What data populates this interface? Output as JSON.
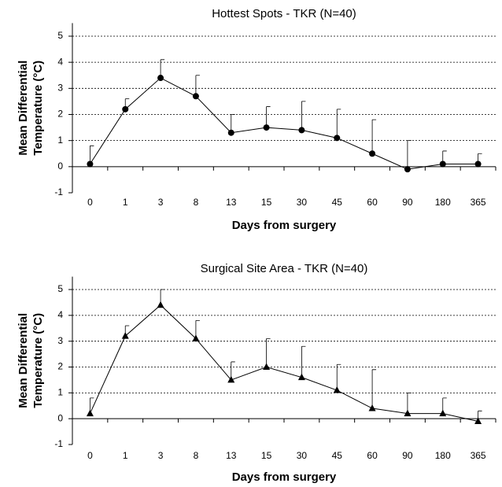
{
  "chart_data": [
    {
      "type": "line",
      "title": "Hottest Spots - TKR (N=40)",
      "xlabel": "Days from surgery",
      "ylabel": [
        "Mean Differential",
        "Temperature (°C)"
      ],
      "categories": [
        "0",
        "1",
        "3",
        "8",
        "13",
        "15",
        "30",
        "45",
        "60",
        "90",
        "180",
        "365"
      ],
      "values": [
        0.1,
        2.2,
        3.4,
        2.7,
        1.3,
        1.5,
        1.4,
        1.1,
        0.5,
        -0.1,
        0.1,
        0.1
      ],
      "errors": [
        0.7,
        0.4,
        0.7,
        0.8,
        0.7,
        0.8,
        1.1,
        1.1,
        1.3,
        1.1,
        0.5,
        0.4
      ],
      "marker": "circle",
      "color": "#000000",
      "ylim": [
        -1,
        5.5
      ],
      "yticks": [
        -1,
        0,
        1,
        2,
        3,
        4,
        5
      ],
      "grid": true
    },
    {
      "type": "line",
      "title": "Surgical Site Area - TKR (N=40)",
      "xlabel": "Days from surgery",
      "ylabel": [
        "Mean Differential",
        "Temperature (°C)"
      ],
      "categories": [
        "0",
        "1",
        "3",
        "8",
        "13",
        "15",
        "30",
        "45",
        "60",
        "90",
        "180",
        "365"
      ],
      "values": [
        0.2,
        3.2,
        4.4,
        3.1,
        1.5,
        2.0,
        1.6,
        1.1,
        0.4,
        0.2,
        0.2,
        -0.1
      ],
      "errors": [
        0.6,
        0.4,
        0.6,
        0.7,
        0.7,
        1.1,
        1.2,
        1.0,
        1.5,
        0.8,
        0.6,
        0.4
      ],
      "marker": "triangle",
      "color": "#000000",
      "ylim": [
        -1,
        5.5
      ],
      "yticks": [
        -1,
        0,
        1,
        2,
        3,
        4,
        5
      ],
      "grid": true
    }
  ]
}
